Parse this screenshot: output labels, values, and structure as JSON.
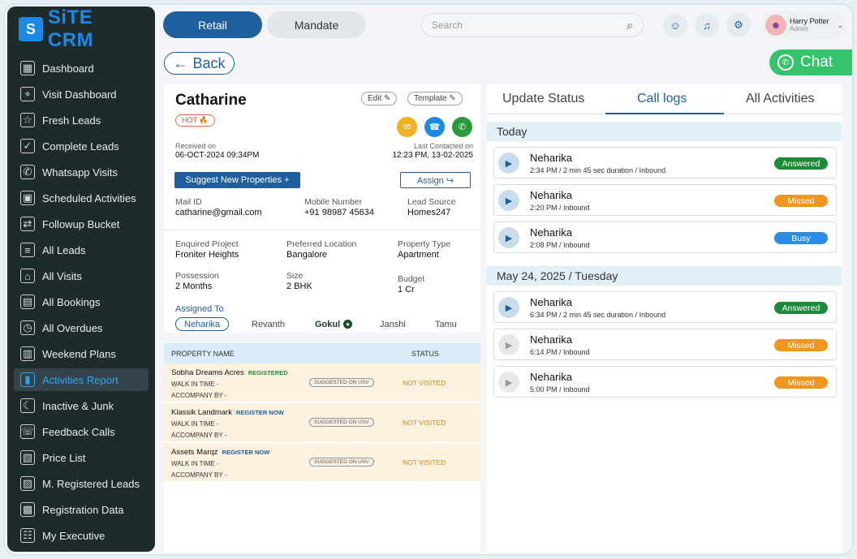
{
  "app": {
    "logo_mark": "S",
    "logo_text": "SiTE CRM"
  },
  "sidebar": {
    "items": [
      {
        "label": "Dashboard",
        "icon": "▦"
      },
      {
        "label": "Visit Dashboard",
        "icon": "⌖"
      },
      {
        "label": "Fresh Leads",
        "icon": "☆"
      },
      {
        "label": "Complete Leads",
        "icon": "✓"
      },
      {
        "label": "Whatsapp Visits",
        "icon": "✆"
      },
      {
        "label": "Scheduled Activities",
        "icon": "▣"
      },
      {
        "label": "Followup Bucket",
        "icon": "⇄"
      },
      {
        "label": "All Leads",
        "icon": "≡"
      },
      {
        "label": "All Visits",
        "icon": "⌂"
      },
      {
        "label": "All Bookings",
        "icon": "▤"
      },
      {
        "label": "All Overdues",
        "icon": "◷"
      },
      {
        "label": "Weekend Plans",
        "icon": "▥"
      },
      {
        "label": "Activities Report",
        "icon": "▮"
      },
      {
        "label": "Inactive & Junk",
        "icon": "☾"
      },
      {
        "label": "Feedback Calls",
        "icon": "☏"
      },
      {
        "label": "Price List",
        "icon": "▧"
      },
      {
        "label": "M. Registered Leads",
        "icon": "▨"
      },
      {
        "label": "Registration Data",
        "icon": "▩"
      },
      {
        "label": "My Executive",
        "icon": "☷"
      }
    ],
    "active_index": 12
  },
  "topbar": {
    "retail_label": "Retail",
    "mandate_label": "Mandate",
    "search_placeholder": "Search",
    "user_name": "Harry Potter",
    "user_role": "Admin"
  },
  "back_label": "Back",
  "chat_label": "Chat",
  "lead": {
    "name": "Catharine",
    "tag": "HOT 🔥",
    "edit_label": "Edit ✎",
    "template_label": "Template ✎",
    "received_label": "Received on",
    "received_value": "06-OCT-2024 09:34PM",
    "last_contacted_label": "Last Contacted on",
    "last_contacted_value": "12:23 PM, 13-02-2025",
    "suggest_label": "Suggest New Properties +",
    "assign_label": "Assign ↪",
    "mail_label": "Mail ID",
    "mail_value": "catharine@gmail.com",
    "mobile_label": "Mobile Number",
    "mobile_value": "+91 98987 45634",
    "source_label": "Lead Source",
    "source_value": "Homes247",
    "project_label": "Enquired Project",
    "project_value": "Froniter Heights",
    "location_label": "Preferred Location",
    "location_value": "Bangalore",
    "ptype_label": "Property Type",
    "ptype_value": "Apartment",
    "possession_label": "Possession",
    "possession_value": "2 Months",
    "size_label": "Size",
    "size_value": "2 BHK",
    "budget_label": "Budget",
    "budget_value": "1 Cr",
    "assigned_label": "Assigned To",
    "assignees": [
      "Neharika",
      "Revanth",
      "Gokul",
      "Janshi",
      "Tamu"
    ]
  },
  "properties": {
    "col_name": "PROPERTY NAME",
    "col_status": "STATUS",
    "rows": [
      {
        "name": "Sobha Dreams Acres",
        "reg": "REGISTERED",
        "walk": "WALK IN TIME -",
        "acc": "ACCOMPANY BY -",
        "suggested": "SUGGESTED ON USV",
        "status": "NOT VISITED"
      },
      {
        "name": "Klassik Landmark",
        "reg": "REGISTER NOW",
        "walk": "WALK IN TIME -",
        "acc": "ACCOMPANY BY -",
        "suggested": "SUGGESTED ON USV",
        "status": "NOT VISITED"
      },
      {
        "name": "Assets Marqz",
        "reg": "REGISTER NOW",
        "walk": "WALK IN TIME -",
        "acc": "ACCOMPANY BY -",
        "suggested": "SUGGESTED ON USV",
        "status": "NOT VISITED"
      }
    ]
  },
  "tabs": {
    "update_status": "Update Status",
    "call_logs": "Call logs",
    "all_activities": "All Activities"
  },
  "call_logs": {
    "today_label": "Today",
    "today": [
      {
        "name": "Neharika",
        "meta": "2:34 PM / 2 min 45 sec duration / Inbound",
        "status": "Answered"
      },
      {
        "name": "Neharika",
        "meta": "2:20 PM / Inbound",
        "status": "Missed"
      },
      {
        "name": "Neharika",
        "meta": "2:08 PM / Inbound",
        "status": "Busy"
      }
    ],
    "past_label": "May 24, 2025 / Tuesday",
    "past": [
      {
        "name": "Neharika",
        "meta": "6:34 PM / 2 min 45 sec duration / Inbound",
        "status": "Answered"
      },
      {
        "name": "Neharika",
        "meta": "6:14 PM / Inbound",
        "status": "Missed"
      },
      {
        "name": "Neharika",
        "meta": "5:00 PM / Inbound",
        "status": "Missed"
      }
    ]
  }
}
